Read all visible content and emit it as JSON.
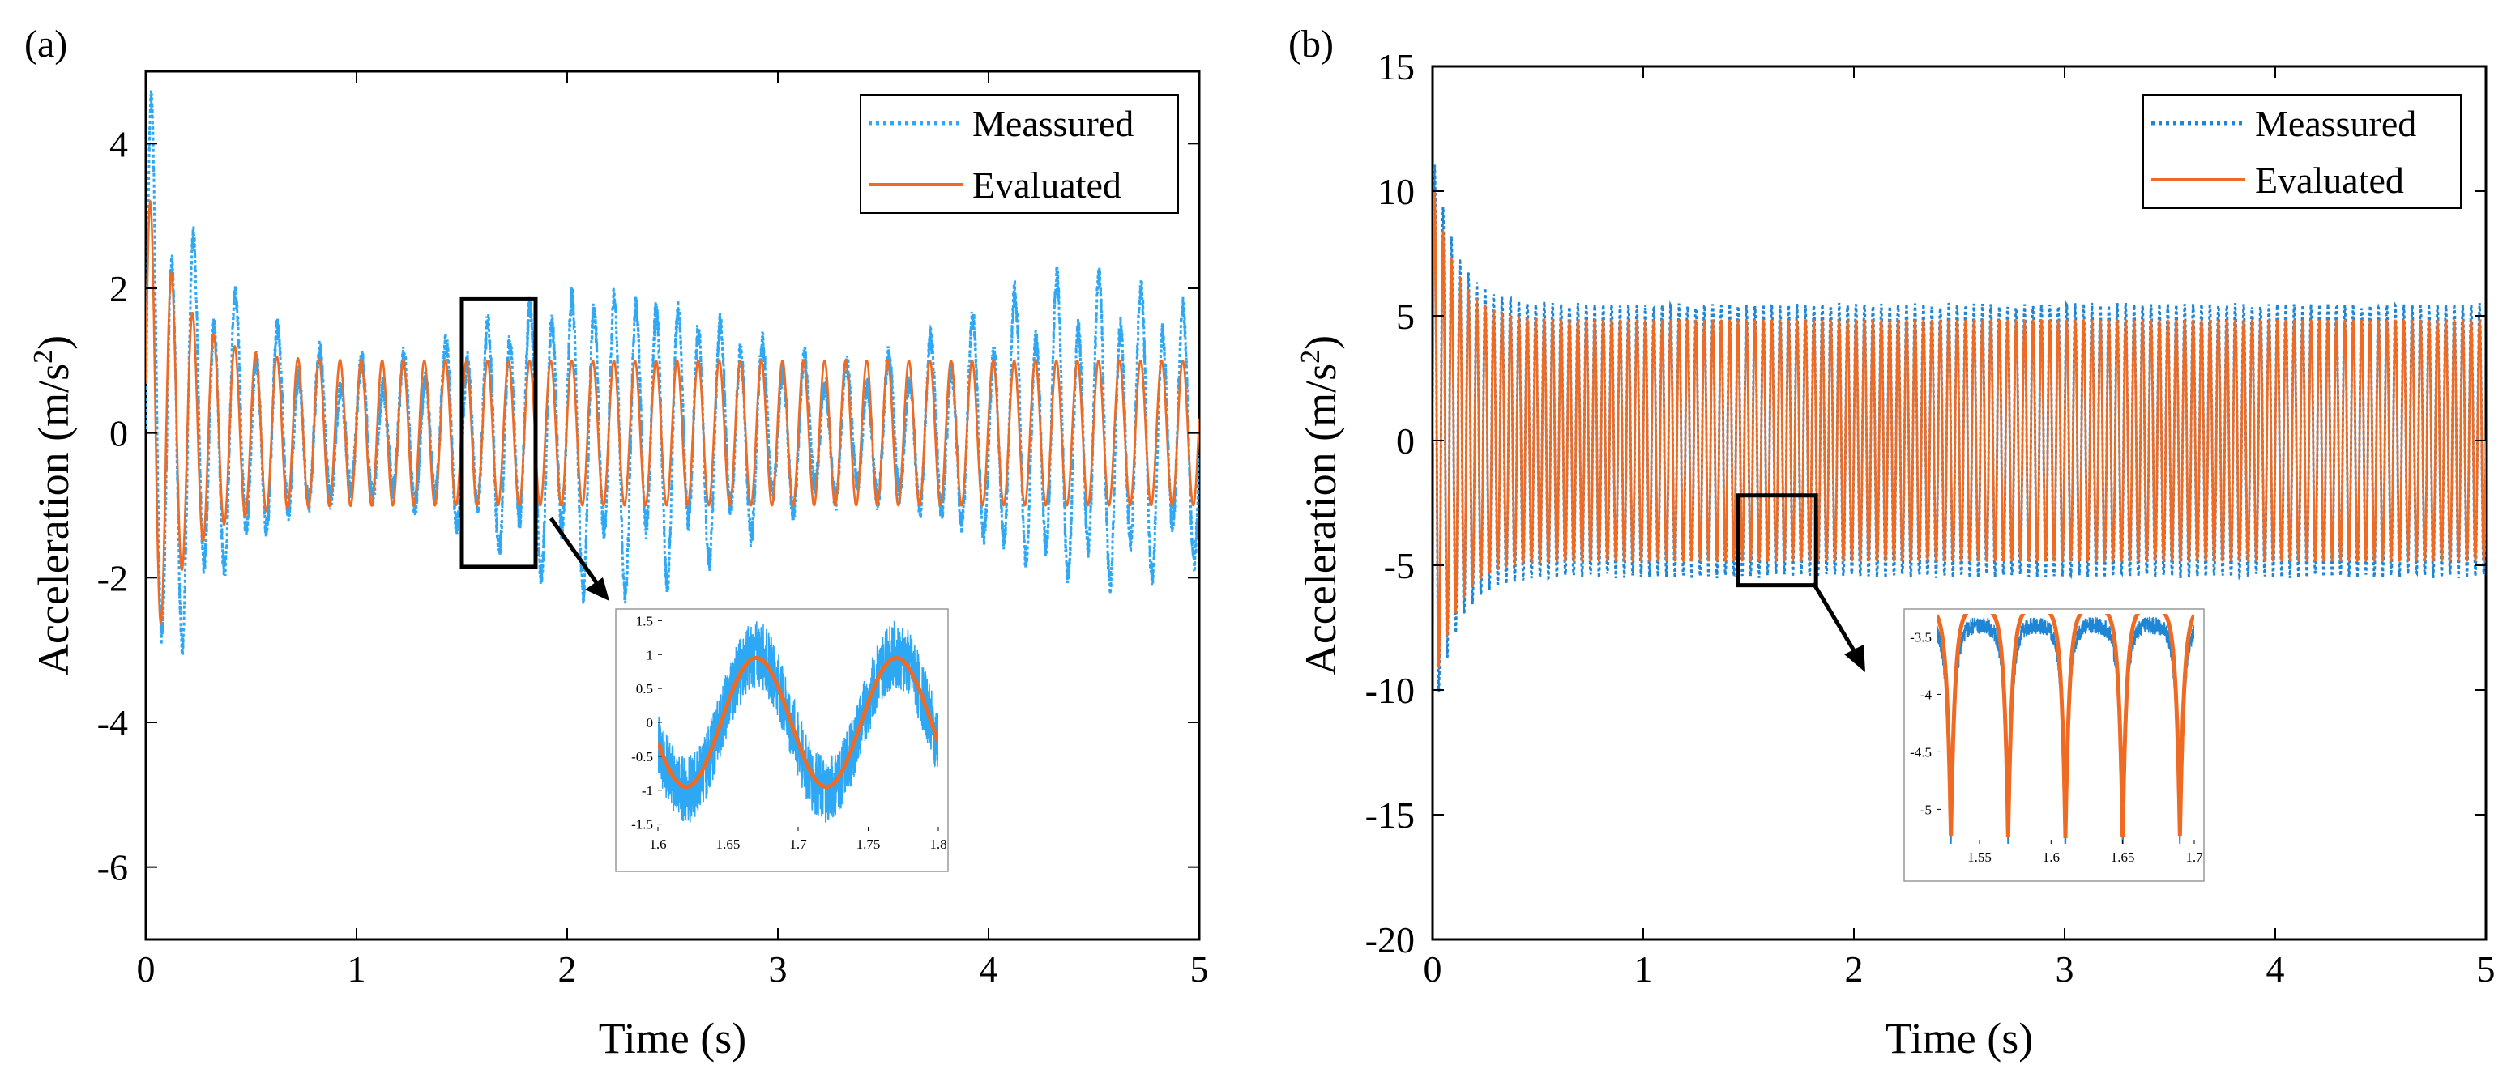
{
  "colors": {
    "measured": "#2ea8f5",
    "measured_b": "#1f86d6",
    "evaluated": "#ef6b24",
    "axis": "#000000"
  },
  "chart_data": [
    {
      "type": "line",
      "panel_label": "(a)",
      "xlabel": "Time (s)",
      "ylabel": "Acceleration (m/s",
      "ylabel_sup": "2",
      "ylabel_close": ")",
      "xlim": [
        0,
        5
      ],
      "ylim": [
        -7,
        5
      ],
      "xticks": [
        0,
        1,
        2,
        3,
        4,
        5
      ],
      "xtick_labels": [
        "0",
        "1",
        "2",
        "3",
        "4",
        "5"
      ],
      "yticks": [
        4,
        2,
        0,
        -2,
        -4,
        -6
      ],
      "ytick_labels": [
        "4",
        "2",
        "0",
        "-2",
        "-4",
        "-6"
      ],
      "legend_position": "top-right",
      "series": [
        {
          "name": "Meassured",
          "style": "dotted",
          "signal": {
            "frequency_hz": 10,
            "peak_start": 4.3,
            "steady_amplitude": 1.8,
            "modulation_period_s": 2.3
          }
        },
        {
          "name": "Evaluated",
          "style": "solid",
          "signal": {
            "frequency_hz": 10,
            "peak_start": 3.5,
            "steady_amplitude": 1.0
          }
        }
      ],
      "zoom_box": {
        "x": [
          1.5,
          1.85
        ],
        "y": [
          -1.85,
          1.85
        ]
      },
      "inset": {
        "xlim": [
          1.6,
          1.8
        ],
        "ylim": [
          -1.6,
          1.6
        ],
        "xticks": [
          1.6,
          1.65,
          1.7,
          1.75,
          1.8
        ],
        "xtick_labels": [
          "1.6",
          "1.65",
          "1.7",
          "1.75",
          "1.8"
        ],
        "yticks": [
          1.5,
          1,
          0.5,
          0,
          -0.5,
          -1,
          -1.5
        ],
        "ytick_labels": [
          "1.5",
          "1",
          "0.5",
          "0",
          "-0.5",
          "-1",
          "-1.5"
        ]
      }
    },
    {
      "type": "line",
      "panel_label": "(b)",
      "xlabel": "Time (s)",
      "ylabel": "Acceleration (m/s",
      "ylabel_sup": "2",
      "ylabel_close": ")",
      "xlim": [
        0,
        5
      ],
      "ylim": [
        -20,
        15
      ],
      "xticks": [
        0,
        1,
        2,
        3,
        4,
        5
      ],
      "xtick_labels": [
        "0",
        "1",
        "2",
        "3",
        "4",
        "5"
      ],
      "yticks": [
        15,
        10,
        5,
        0,
        -5,
        -10,
        -15,
        -20
      ],
      "ytick_labels": [
        "15",
        "10",
        "5",
        "0",
        "-5",
        "-10",
        "-15",
        "-20"
      ],
      "legend_position": "top-right",
      "series": [
        {
          "name": "Meassured",
          "style": "dotted",
          "signal": {
            "frequency_hz": 25,
            "peak_start": 11.5,
            "steady_amplitude": 5.4
          }
        },
        {
          "name": "Evaluated",
          "style": "solid",
          "signal": {
            "frequency_hz": 25,
            "peak_start": 11.0,
            "steady_amplitude": 5.1
          }
        }
      ],
      "zoom_box": {
        "x": [
          1.45,
          1.82
        ],
        "y": [
          -5.8,
          -2.2
        ]
      },
      "inset": {
        "xlim": [
          1.52,
          1.7
        ],
        "ylim": [
          -5.3,
          -3.3
        ],
        "xticks": [
          1.55,
          1.6,
          1.65,
          1.7
        ],
        "xtick_labels": [
          "1.55",
          "1.6",
          "1.65",
          "1.7"
        ],
        "yticks": [
          -3.5,
          -4,
          -4.5,
          -5
        ],
        "ytick_labels": [
          "-3.5",
          "-4",
          "-4.5",
          "-5"
        ]
      }
    }
  ]
}
